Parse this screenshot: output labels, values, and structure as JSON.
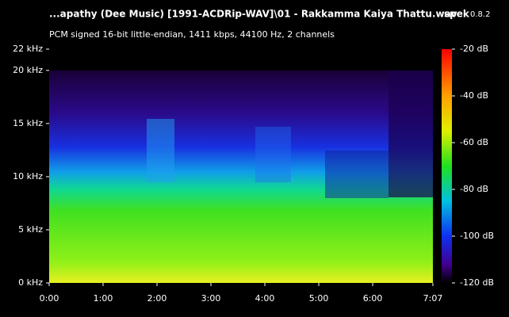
{
  "chart_data": {
    "type": "spectrogram",
    "title": "...apathy (Dee Music) [1991-ACDRip-WAV]\\01 - Rakkamma Kaiya Thattu.wav",
    "app": "spek",
    "version": "0.8.2",
    "subtitle": "PCM signed 16-bit little-endian, 1411 kbps, 44100 Hz, 2 channels",
    "ylim": [
      0,
      22
    ],
    "yticks": [
      {
        "value": 0,
        "label": "0 kHz"
      },
      {
        "value": 5,
        "label": "5 kHz"
      },
      {
        "value": 10,
        "label": "10 kHz"
      },
      {
        "value": 15,
        "label": "15 kHz"
      },
      {
        "value": 20,
        "label": "20 kHz"
      },
      {
        "value": 22,
        "label": "22 kHz"
      }
    ],
    "xlim": [
      0,
      427
    ],
    "xticks": [
      {
        "value": 0,
        "label": "0:00"
      },
      {
        "value": 60,
        "label": "1:00"
      },
      {
        "value": 120,
        "label": "2:00"
      },
      {
        "value": 180,
        "label": "3:00"
      },
      {
        "value": 240,
        "label": "4:00"
      },
      {
        "value": 300,
        "label": "5:00"
      },
      {
        "value": 360,
        "label": "6:00"
      },
      {
        "value": 427,
        "label": "7:07"
      }
    ],
    "clim": [
      -120,
      -20
    ],
    "cticks": [
      {
        "value": -20,
        "label": "-20 dB"
      },
      {
        "value": -40,
        "label": "-40 dB"
      },
      {
        "value": -60,
        "label": "-60 dB"
      },
      {
        "value": -80,
        "label": "-80 dB"
      },
      {
        "value": -100,
        "label": "-100 dB"
      },
      {
        "value": -120,
        "label": "-120 dB"
      }
    ]
  }
}
